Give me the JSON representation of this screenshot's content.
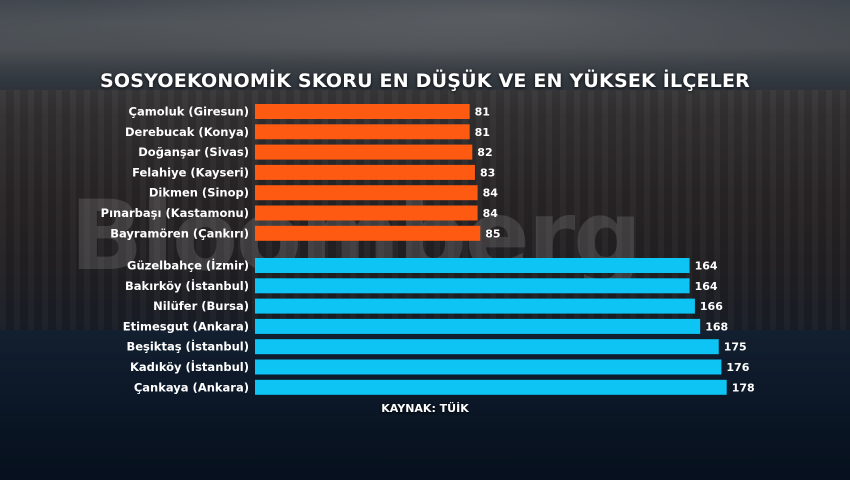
{
  "background": {
    "watermark_text": "Bloomberg"
  },
  "chart_data": {
    "type": "bar",
    "orientation": "horizontal",
    "title": "SOSYOEKONOMİK SKORU EN DÜŞÜK VE EN YÜKSEK İLÇELER",
    "source": "KAYNAK: TÜİK",
    "groups": [
      {
        "color": "#ff5a12",
        "categories": [
          "Çamoluk (Giresun)",
          "Derebucak (Konya)",
          "Doğanşar (Sivas)",
          "Felahiye (Kayseri)",
          "Dikmen (Sinop)",
          "Pınarbaşı (Kastamonu)",
          "Bayramören (Çankırı)"
        ],
        "values": [
          81,
          81,
          82,
          83,
          84,
          84,
          85
        ]
      },
      {
        "color": "#0ec4f5",
        "categories": [
          "Güzelbahçe (İzmir)",
          "Bakırköy (İstanbul)",
          "Nilüfer (Bursa)",
          "Etimesgut (Ankara)",
          "Beşiktaş (İstanbul)",
          "Kadıköy (İstanbul)",
          "Çankaya (Ankara)"
        ],
        "values": [
          164,
          164,
          166,
          168,
          175,
          176,
          178
        ]
      }
    ]
  }
}
